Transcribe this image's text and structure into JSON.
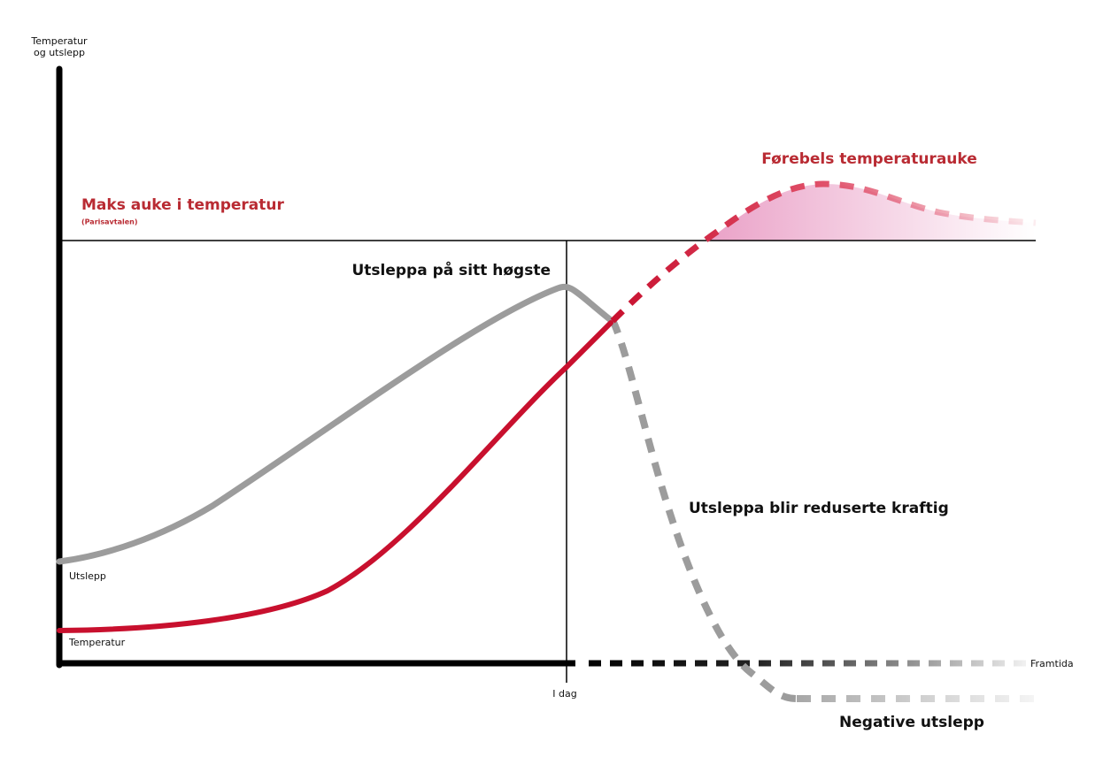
{
  "axis": {
    "y_label": [
      "Temperatur",
      "og utslepp"
    ],
    "x_today": "I dag",
    "x_future": "Framtida"
  },
  "labels": {
    "max_temp": "Maks auke i temperatur",
    "paris": "(Parisavtalen)",
    "temp_rise": "Førebels temperaturauke",
    "peak": "Utsleppa på sitt høgste",
    "reduced": "Utsleppa blir reduserte kraftig",
    "emissions": "Utslepp",
    "temperature": "Temperatur",
    "negative": "Negative utslepp"
  }
}
